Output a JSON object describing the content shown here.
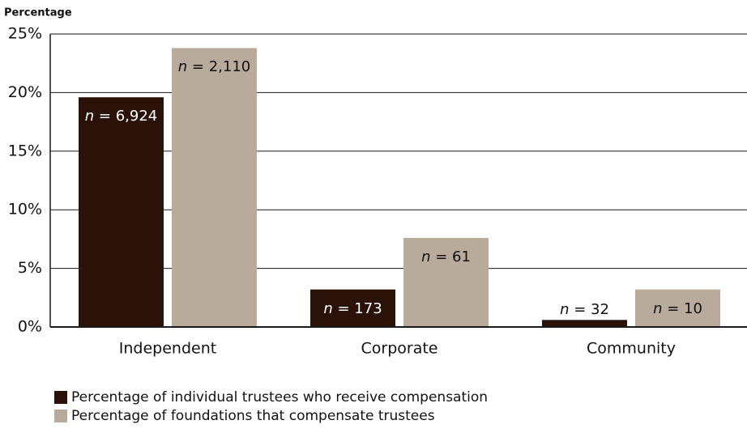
{
  "chart_data": {
    "type": "bar",
    "y_label": "Percentage",
    "categories": [
      "Independent",
      "Corporate",
      "Community"
    ],
    "series": [
      {
        "name": "Percentage of individual trustees who receive compensation",
        "color": "#2a1208",
        "values": [
          19.6,
          3.2,
          0.6
        ],
        "labels": [
          "n = 6,924",
          "n = 173",
          "n = 32"
        ]
      },
      {
        "name": "Percentage of foundations that compensate trustees",
        "color": "#b9ab9b",
        "values": [
          23.8,
          7.6,
          3.2
        ],
        "labels": [
          "n = 2,110",
          "n = 61",
          "n = 10"
        ]
      }
    ],
    "ylim": [
      0,
      25
    ],
    "yticks": [
      {
        "value": 0,
        "label": "0%"
      },
      {
        "value": 5,
        "label": "5%"
      },
      {
        "value": 10,
        "label": "10%"
      },
      {
        "value": 15,
        "label": "15%"
      },
      {
        "value": 20,
        "label": "20%"
      },
      {
        "value": 25,
        "label": "25%"
      }
    ],
    "grid": true,
    "legend": "bottom-left"
  }
}
